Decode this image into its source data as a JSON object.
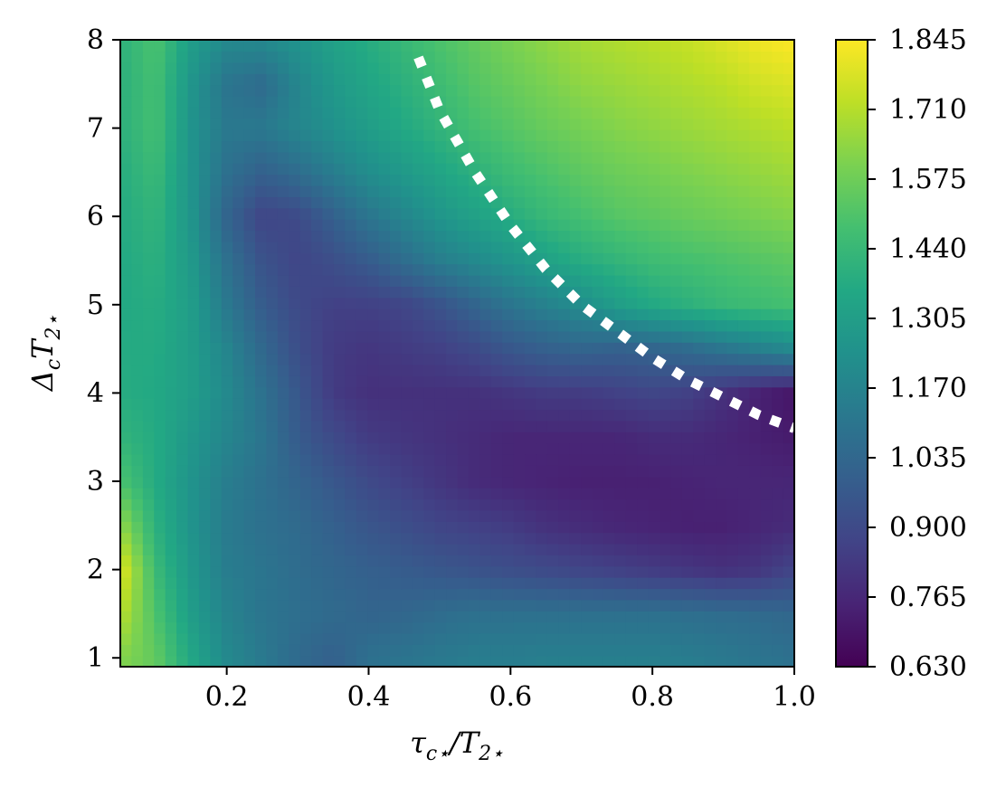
{
  "chart_data": {
    "type": "heatmap",
    "title": "",
    "xlabel": "τ_{c⋆}/T_{2⋆}",
    "ylabel": "Δ_c T_{2⋆}",
    "xlim": [
      0.05,
      1.0
    ],
    "ylim": [
      0.9,
      8.0
    ],
    "x_ticks": [
      0.2,
      0.4,
      0.6,
      0.8,
      1.0
    ],
    "x_tick_labels": [
      "0.2",
      "0.4",
      "0.6",
      "0.8",
      "1.0"
    ],
    "y_ticks": [
      1,
      2,
      3,
      4,
      5,
      6,
      7,
      8
    ],
    "y_tick_labels": [
      "1",
      "2",
      "3",
      "4",
      "5",
      "6",
      "7",
      "8"
    ],
    "colorbar": {
      "colormap": "viridis",
      "range": [
        0.63,
        1.845
      ],
      "ticks": [
        0.63,
        0.765,
        0.9,
        1.035,
        1.17,
        1.305,
        1.44,
        1.575,
        1.71,
        1.845
      ],
      "tick_labels": [
        "0.630",
        "0.765",
        "0.900",
        "1.035",
        "1.170",
        "1.305",
        "1.440",
        "1.575",
        "1.710",
        "1.845"
      ]
    },
    "grid": false,
    "x": [
      0.05,
      0.1,
      0.15,
      0.2,
      0.25,
      0.3,
      0.35,
      0.4,
      0.45,
      0.5,
      0.55,
      0.6,
      0.65,
      0.7,
      0.75,
      0.8,
      0.85,
      0.9,
      0.95,
      1.0
    ],
    "y": [
      1.0,
      1.5,
      2.0,
      2.5,
      3.0,
      3.5,
      4.0,
      4.5,
      5.0,
      5.5,
      6.0,
      6.5,
      7.0,
      7.5,
      8.0
    ],
    "z": [
      [
        1.62,
        1.55,
        1.35,
        1.2,
        1.12,
        1.05,
        1.0,
        1.08,
        1.1,
        1.12,
        1.14,
        1.14,
        1.15,
        1.15,
        1.15,
        1.15,
        1.14,
        1.12,
        1.1,
        1.08
      ],
      [
        1.72,
        1.5,
        1.3,
        1.17,
        1.1,
        1.07,
        1.05,
        1.02,
        1.03,
        1.06,
        1.08,
        1.08,
        1.08,
        1.08,
        1.08,
        1.08,
        1.07,
        1.06,
        1.05,
        1.03
      ],
      [
        1.8,
        1.45,
        1.27,
        1.14,
        1.1,
        1.06,
        1.03,
        1.0,
        0.98,
        0.96,
        0.94,
        0.92,
        0.9,
        0.88,
        0.86,
        0.84,
        0.82,
        0.8,
        0.82,
        0.88
      ],
      [
        1.65,
        1.4,
        1.25,
        1.13,
        1.08,
        1.05,
        1.0,
        0.95,
        0.92,
        0.88,
        0.86,
        0.84,
        0.8,
        0.78,
        0.76,
        0.75,
        0.74,
        0.74,
        0.76,
        0.78
      ],
      [
        1.5,
        1.37,
        1.25,
        1.14,
        1.08,
        1.02,
        0.96,
        0.9,
        0.86,
        0.82,
        0.78,
        0.76,
        0.75,
        0.74,
        0.74,
        0.74,
        0.75,
        0.76,
        0.76,
        0.76
      ],
      [
        1.42,
        1.37,
        1.27,
        1.18,
        1.1,
        0.98,
        0.9,
        0.84,
        0.82,
        0.8,
        0.78,
        0.76,
        0.76,
        0.76,
        0.76,
        0.78,
        0.78,
        0.76,
        0.74,
        0.72
      ],
      [
        1.38,
        1.36,
        1.3,
        1.2,
        1.08,
        0.96,
        0.84,
        0.8,
        0.8,
        0.8,
        0.8,
        0.82,
        0.84,
        0.84,
        0.86,
        0.88,
        0.86,
        0.8,
        0.74,
        0.7
      ],
      [
        1.37,
        1.37,
        1.3,
        1.18,
        1.04,
        0.92,
        0.84,
        0.82,
        0.84,
        0.86,
        0.9,
        0.96,
        1.0,
        1.02,
        1.0,
        1.02,
        1.05,
        1.1,
        1.15,
        1.2
      ],
      [
        1.36,
        1.38,
        1.3,
        1.12,
        0.98,
        0.9,
        0.86,
        0.86,
        0.88,
        0.94,
        1.02,
        1.1,
        1.16,
        1.22,
        1.3,
        1.36,
        1.4,
        1.44,
        1.46,
        1.48
      ],
      [
        1.36,
        1.4,
        1.28,
        1.08,
        0.94,
        0.88,
        0.92,
        0.98,
        1.06,
        1.14,
        1.2,
        1.26,
        1.32,
        1.38,
        1.42,
        1.46,
        1.48,
        1.5,
        1.52,
        1.54
      ],
      [
        1.37,
        1.42,
        1.26,
        1.02,
        0.88,
        0.9,
        1.0,
        1.1,
        1.18,
        1.26,
        1.32,
        1.38,
        1.44,
        1.48,
        1.52,
        1.54,
        1.56,
        1.58,
        1.6,
        1.62
      ],
      [
        1.38,
        1.45,
        1.25,
        1.08,
        1.0,
        1.06,
        1.14,
        1.22,
        1.28,
        1.34,
        1.4,
        1.46,
        1.5,
        1.54,
        1.57,
        1.59,
        1.61,
        1.63,
        1.65,
        1.67
      ],
      [
        1.4,
        1.48,
        1.25,
        1.12,
        1.12,
        1.18,
        1.24,
        1.3,
        1.36,
        1.42,
        1.48,
        1.52,
        1.56,
        1.59,
        1.62,
        1.64,
        1.66,
        1.68,
        1.7,
        1.72
      ],
      [
        1.4,
        1.48,
        1.26,
        1.1,
        1.05,
        1.18,
        1.28,
        1.34,
        1.4,
        1.46,
        1.52,
        1.56,
        1.6,
        1.64,
        1.66,
        1.68,
        1.7,
        1.72,
        1.76,
        1.78
      ],
      [
        1.4,
        1.5,
        1.3,
        1.2,
        1.2,
        1.25,
        1.32,
        1.38,
        1.44,
        1.5,
        1.55,
        1.6,
        1.64,
        1.68,
        1.7,
        1.72,
        1.74,
        1.78,
        1.82,
        1.845
      ]
    ],
    "annotations": [
      {
        "type": "dotted-curve",
        "color": "#ffffff",
        "points": [
          [
            0.47,
            7.8
          ],
          [
            0.5,
            7.2
          ],
          [
            0.55,
            6.5
          ],
          [
            0.6,
            5.9
          ],
          [
            0.65,
            5.4
          ],
          [
            0.7,
            5.0
          ],
          [
            0.75,
            4.7
          ],
          [
            0.8,
            4.4
          ],
          [
            0.85,
            4.15
          ],
          [
            0.9,
            3.95
          ],
          [
            0.95,
            3.75
          ],
          [
            1.0,
            3.6
          ]
        ]
      }
    ]
  }
}
